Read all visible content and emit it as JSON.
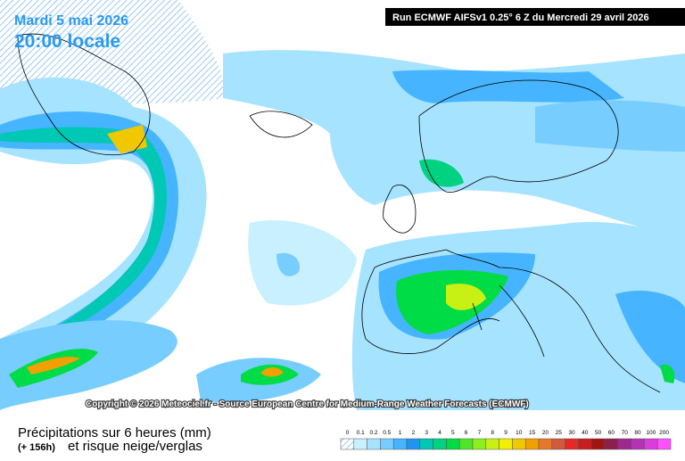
{
  "header": {
    "date": "Mardi 5 mai 2026",
    "time": "20:00 locale",
    "run": "Run ECMWF AIFSv1 0.25° 6 Z du Mercredi 29 avril 2026"
  },
  "copyright": "Copyright © 2026 Meteociel.fr - Source European Centre for Medium-Range Weather Forecasts (ECMWF)",
  "footer": {
    "title": "Précipitations sur 6 heures (mm)",
    "lead": "(+ 156h)",
    "subtitle": "et risque neige/verglas"
  },
  "legend": {
    "labels": [
      "0",
      "0.1",
      "0.2",
      "0.5",
      "1",
      "2",
      "3",
      "4",
      "5",
      "6",
      "7",
      "8",
      "9",
      "10",
      "15",
      "20",
      "25",
      "30",
      "40",
      "50",
      "60",
      "70",
      "80",
      "100",
      "200"
    ],
    "colors": [
      "#ffffff",
      "#c8f0ff",
      "#a6e3ff",
      "#78cdff",
      "#46b4ff",
      "#1e96f0",
      "#00c8b4",
      "#00d282",
      "#00dc46",
      "#50e628",
      "#8cf01e",
      "#c8f014",
      "#f0f000",
      "#f0c800",
      "#f0a000",
      "#e67828",
      "#d25a3c",
      "#e62828",
      "#c81e1e",
      "#a01414",
      "#8c1e50",
      "#a0288c",
      "#b432b4",
      "#dc3cdc",
      "#ff50ff"
    ]
  }
}
